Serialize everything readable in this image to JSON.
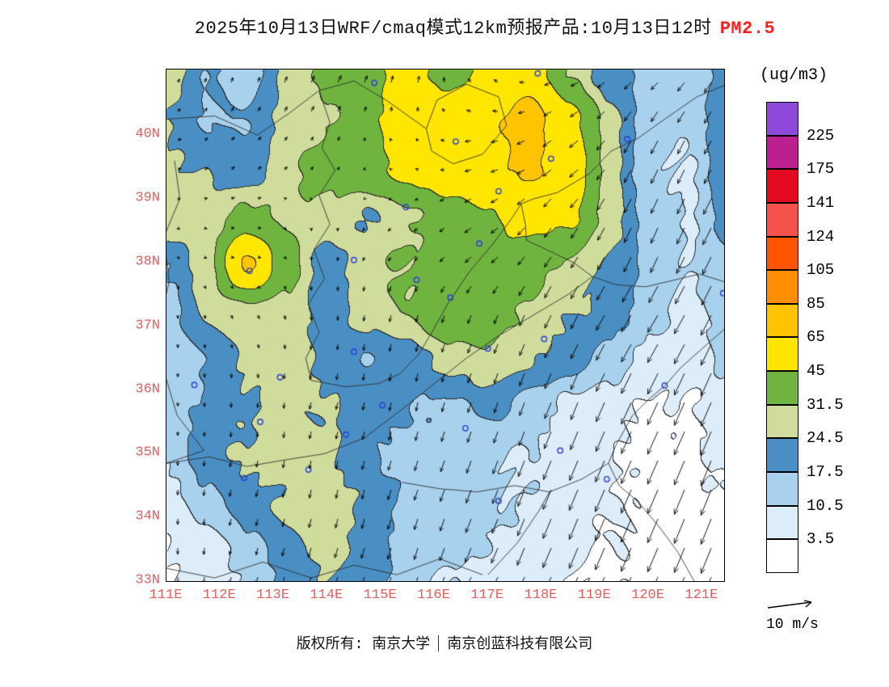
{
  "title": {
    "main": "2025年10月13日WRF/cmaq模式12km预报产品:10月13日12时",
    "pollutant": "PM2.5",
    "pollutant_color": "#fa2020"
  },
  "axes": {
    "label_color": "#e85c5c",
    "lat_labels": [
      "40N",
      "39N",
      "38N",
      "37N",
      "36N",
      "35N",
      "34N",
      "33N"
    ],
    "lat_values": [
      40,
      39,
      38,
      37,
      36,
      35,
      34,
      33
    ],
    "lon_labels": [
      "111E",
      "112E",
      "113E",
      "114E",
      "115E",
      "116E",
      "117E",
      "118E",
      "119E",
      "120E",
      "121E"
    ],
    "lon_values": [
      111,
      112,
      113,
      114,
      115,
      116,
      117,
      118,
      119,
      120,
      121
    ]
  },
  "legend": {
    "unit": "(ug/m3)",
    "labels": [
      "225",
      "175",
      "141",
      "124",
      "105",
      "85",
      "65",
      "45",
      "31.5",
      "24.5",
      "17.5",
      "10.5",
      "3.5"
    ],
    "wind_scale_label": "10 m/s"
  },
  "footer": {
    "left": "版权所有: 南京大学",
    "right": "南京创蓝科技有限公司"
  },
  "chart_data": {
    "type": "heatmap",
    "title": "2025年10月13日WRF/cmaq模式12km预报产品:10月13日12时 PM2.5",
    "units": "ug/m3",
    "lon_range": [
      111,
      121.41
    ],
    "lat_range": [
      33,
      41.03
    ],
    "levels": [
      3.5,
      10.5,
      17.5,
      24.5,
      31.5,
      45,
      65,
      85,
      105,
      124,
      141,
      175,
      225
    ],
    "colors": [
      "#ffffff",
      "#dcecf9",
      "#a8d1ee",
      "#4a8fc4",
      "#cfdc9b",
      "#6fb43e",
      "#ffe600",
      "#ffc400",
      "#ff8d00",
      "#ff5500",
      "#f4524a",
      "#e40b20",
      "#bc1f8e",
      "#8f49da"
    ],
    "grid": {
      "lons": [
        111,
        111.75,
        112.5,
        113.25,
        114,
        114.75,
        115.5,
        116.25,
        117,
        117.75,
        118.5,
        119.25,
        120,
        120.75,
        121.4
      ],
      "lats": [
        41,
        40.25,
        39.5,
        38.75,
        38,
        37.25,
        36.5,
        35.75,
        35,
        34.25,
        33.5,
        33
      ],
      "pm25": [
        [
          28,
          18,
          15,
          26,
          33,
          40,
          52,
          40,
          48,
          55,
          32,
          20,
          16,
          14,
          20
        ],
        [
          25,
          16,
          18,
          28,
          30,
          42,
          52,
          56,
          62,
          72,
          50,
          28,
          14,
          12,
          22
        ],
        [
          26,
          24,
          18,
          30,
          35,
          42,
          50,
          56,
          62,
          68,
          55,
          28,
          12,
          10,
          22
        ],
        [
          30,
          28,
          34,
          30,
          30,
          24,
          30,
          38,
          44,
          52,
          48,
          28,
          14,
          10,
          20
        ],
        [
          18,
          28,
          68,
          35,
          20,
          30,
          32,
          35,
          40,
          36,
          30,
          24,
          16,
          10,
          16
        ],
        [
          14,
          26,
          28,
          30,
          20,
          28,
          32,
          42,
          36,
          30,
          25,
          22,
          14,
          8,
          13
        ],
        [
          12,
          18,
          26,
          28,
          22,
          18,
          20,
          28,
          30,
          26,
          22,
          15,
          8,
          6,
          12
        ],
        [
          15,
          18,
          24,
          26,
          25,
          20,
          18,
          16,
          20,
          15,
          8,
          6,
          3,
          3,
          6
        ],
        [
          12,
          22,
          25,
          28,
          26,
          18,
          15,
          14,
          12,
          10,
          6,
          4,
          2,
          2,
          5
        ],
        [
          8,
          15,
          22,
          25,
          28,
          24,
          16,
          14,
          12,
          10,
          6,
          4,
          2,
          2,
          3
        ],
        [
          3,
          8,
          14,
          22,
          26,
          22,
          15,
          12,
          10,
          8,
          5,
          3,
          2,
          2,
          2
        ],
        [
          2,
          6,
          12,
          20,
          24,
          20,
          14,
          10,
          8,
          6,
          4,
          3,
          2,
          2,
          2
        ]
      ]
    },
    "wind": {
      "reference_speed": 10,
      "lons": [
        111,
        112.5,
        114,
        115.5,
        117,
        118.5,
        120,
        121.4
      ],
      "lats": [
        41,
        39.7,
        38.4,
        37.1,
        35.8,
        34.5,
        33
      ],
      "u": [
        [
          0.5,
          0.5,
          1.0,
          0.5,
          -1.0,
          -2.0,
          -2.0,
          -2.0
        ],
        [
          1.0,
          1.0,
          0.5,
          -0.5,
          -2.0,
          -2.5,
          -2.0,
          -2.0
        ],
        [
          0.5,
          1.0,
          0.0,
          -1.0,
          -2.0,
          -2.0,
          -2.0,
          -2.5
        ],
        [
          0.0,
          0.5,
          0.0,
          -0.5,
          -1.0,
          -2.0,
          -3.0,
          -3.0
        ],
        [
          0.0,
          0.0,
          -0.5,
          -0.5,
          -1.0,
          -2.0,
          -3.0,
          -3.0
        ],
        [
          0.0,
          -0.5,
          -0.5,
          -1.0,
          -1.5,
          -2.5,
          -3.0,
          -3.0
        ],
        [
          0.0,
          -0.5,
          -1.0,
          -1.0,
          -2.0,
          -2.5,
          -3.0,
          -3.0
        ]
      ],
      "v": [
        [
          1.0,
          1.5,
          2.0,
          2.0,
          1.0,
          -1.0,
          -2.0,
          -3.0
        ],
        [
          0.5,
          1.0,
          1.0,
          0.5,
          -0.5,
          -2.0,
          -4.0,
          -4.0
        ],
        [
          -0.5,
          0.0,
          -1.0,
          -1.0,
          -1.5,
          -3.0,
          -4.5,
          -5.0
        ],
        [
          -1.0,
          -1.0,
          -1.5,
          -2.0,
          -2.5,
          -4.0,
          -5.0,
          -6.0
        ],
        [
          -1.0,
          -1.5,
          -2.0,
          -2.5,
          -3.0,
          -5.0,
          -6.5,
          -7.0
        ],
        [
          -1.5,
          -2.0,
          -2.5,
          -3.0,
          -4.0,
          -6.0,
          -7.0,
          -7.5
        ],
        [
          -2.0,
          -2.0,
          -3.0,
          -3.5,
          -4.5,
          -6.0,
          -7.0,
          -7.5
        ]
      ]
    },
    "marker_color": "#2b3fd6",
    "markers": [
      [
        114.88,
        40.82
      ],
      [
        117.93,
        40.97
      ],
      [
        116.4,
        39.9
      ],
      [
        117.2,
        39.12
      ],
      [
        118.18,
        39.63
      ],
      [
        119.6,
        39.94
      ],
      [
        114.5,
        38.04
      ],
      [
        115.47,
        38.87
      ],
      [
        116.84,
        38.3
      ],
      [
        112.55,
        37.87
      ],
      [
        115.67,
        37.73
      ],
      [
        116.3,
        37.45
      ],
      [
        117.0,
        36.65
      ],
      [
        114.5,
        36.6
      ],
      [
        113.12,
        36.2
      ],
      [
        111.52,
        36.08
      ],
      [
        112.75,
        35.5
      ],
      [
        114.35,
        35.3
      ],
      [
        115.03,
        35.76
      ],
      [
        116.58,
        35.4
      ],
      [
        118.35,
        35.05
      ],
      [
        117.2,
        34.26
      ],
      [
        113.65,
        34.75
      ],
      [
        112.45,
        34.62
      ],
      [
        119.22,
        34.6
      ],
      [
        120.3,
        36.07
      ],
      [
        121.39,
        37.52
      ],
      [
        118.05,
        36.8
      ]
    ],
    "outlines": [
      [
        [
          121.41,
          40.78
        ],
        [
          120.9,
          40.6
        ],
        [
          120.3,
          40.25
        ],
        [
          119.8,
          39.95
        ],
        [
          119.3,
          39.75
        ],
        [
          118.9,
          39.4
        ],
        [
          118.3,
          39.1
        ],
        [
          117.85,
          39.0
        ],
        [
          117.62,
          38.92
        ],
        [
          117.7,
          38.6
        ],
        [
          117.72,
          38.35
        ],
        [
          118.1,
          38.2
        ],
        [
          118.6,
          38.0
        ],
        [
          118.95,
          37.78
        ],
        [
          119.4,
          37.65
        ],
        [
          119.95,
          37.62
        ],
        [
          120.45,
          37.72
        ],
        [
          120.95,
          37.82
        ],
        [
          121.41,
          37.7
        ]
      ],
      [
        [
          121.41,
          36.95
        ],
        [
          121.0,
          36.65
        ],
        [
          120.6,
          36.35
        ],
        [
          120.32,
          36.08
        ],
        [
          120.0,
          35.85
        ],
        [
          119.7,
          35.6
        ],
        [
          119.4,
          35.15
        ],
        [
          119.25,
          34.85
        ],
        [
          119.45,
          34.5
        ],
        [
          119.8,
          34.25
        ],
        [
          120.2,
          33.85
        ],
        [
          120.55,
          33.45
        ],
        [
          120.85,
          33.0
        ]
      ],
      [
        [
          113.85,
          40.7
        ],
        [
          114.05,
          40.2
        ],
        [
          113.9,
          39.8
        ],
        [
          114.15,
          39.45
        ],
        [
          113.85,
          39.05
        ],
        [
          114.05,
          38.6
        ],
        [
          113.75,
          38.2
        ],
        [
          113.95,
          37.75
        ],
        [
          113.65,
          37.35
        ],
        [
          113.85,
          36.9
        ],
        [
          113.6,
          36.5
        ],
        [
          113.7,
          36.15
        ]
      ],
      [
        [
          113.7,
          36.15
        ],
        [
          114.35,
          36.05
        ],
        [
          114.95,
          36.1
        ],
        [
          115.35,
          36.25
        ],
        [
          115.7,
          36.55
        ],
        [
          115.95,
          36.9
        ],
        [
          116.25,
          37.35
        ],
        [
          116.65,
          37.85
        ],
        [
          117.1,
          38.3
        ],
        [
          117.45,
          38.7
        ],
        [
          117.62,
          38.92
        ]
      ],
      [
        [
          111.0,
          34.85
        ],
        [
          111.8,
          34.95
        ],
        [
          112.5,
          34.8
        ],
        [
          113.2,
          34.9
        ],
        [
          113.95,
          35.0
        ],
        [
          114.7,
          35.25
        ],
        [
          115.4,
          35.7
        ],
        [
          116.0,
          36.1
        ],
        [
          116.6,
          36.5
        ],
        [
          117.2,
          36.85
        ],
        [
          117.9,
          37.2
        ],
        [
          118.5,
          37.5
        ],
        [
          118.95,
          37.78
        ]
      ],
      [
        [
          115.85,
          40.1
        ],
        [
          116.05,
          40.55
        ],
        [
          116.6,
          40.8
        ],
        [
          117.2,
          40.6
        ],
        [
          117.35,
          40.15
        ],
        [
          116.9,
          39.7
        ],
        [
          116.35,
          39.55
        ],
        [
          115.95,
          39.75
        ],
        [
          115.85,
          40.1
        ]
      ],
      [
        [
          115.4,
          34.55
        ],
        [
          116.1,
          34.45
        ],
        [
          116.8,
          34.4
        ],
        [
          117.5,
          34.5
        ],
        [
          118.15,
          34.4
        ],
        [
          118.75,
          34.6
        ],
        [
          119.25,
          34.85
        ]
      ],
      [
        [
          111.0,
          33.2
        ],
        [
          111.9,
          33.05
        ],
        [
          112.8,
          33.3
        ],
        [
          113.7,
          33.05
        ],
        [
          114.5,
          33.25
        ],
        [
          115.3,
          33.1
        ],
        [
          116.1,
          33.35
        ],
        [
          116.9,
          33.1
        ]
      ],
      [
        [
          111.0,
          40.25
        ],
        [
          111.9,
          40.3
        ],
        [
          112.7,
          40.0
        ],
        [
          113.3,
          40.35
        ],
        [
          113.85,
          40.7
        ],
        [
          114.5,
          40.85
        ],
        [
          115.1,
          40.55
        ],
        [
          115.85,
          40.1
        ]
      ],
      [
        [
          117.0,
          33.1
        ],
        [
          117.55,
          33.6
        ],
        [
          117.95,
          34.1
        ],
        [
          118.15,
          34.4
        ]
      ],
      [
        [
          111.15,
          39.6
        ],
        [
          111.25,
          39.0
        ],
        [
          110.95,
          38.4
        ],
        [
          111.05,
          37.7
        ],
        [
          110.85,
          37.0
        ],
        [
          110.95,
          36.3
        ],
        [
          111.2,
          35.6
        ],
        [
          111.7,
          35.05
        ],
        [
          111.0,
          34.85
        ]
      ]
    ]
  }
}
